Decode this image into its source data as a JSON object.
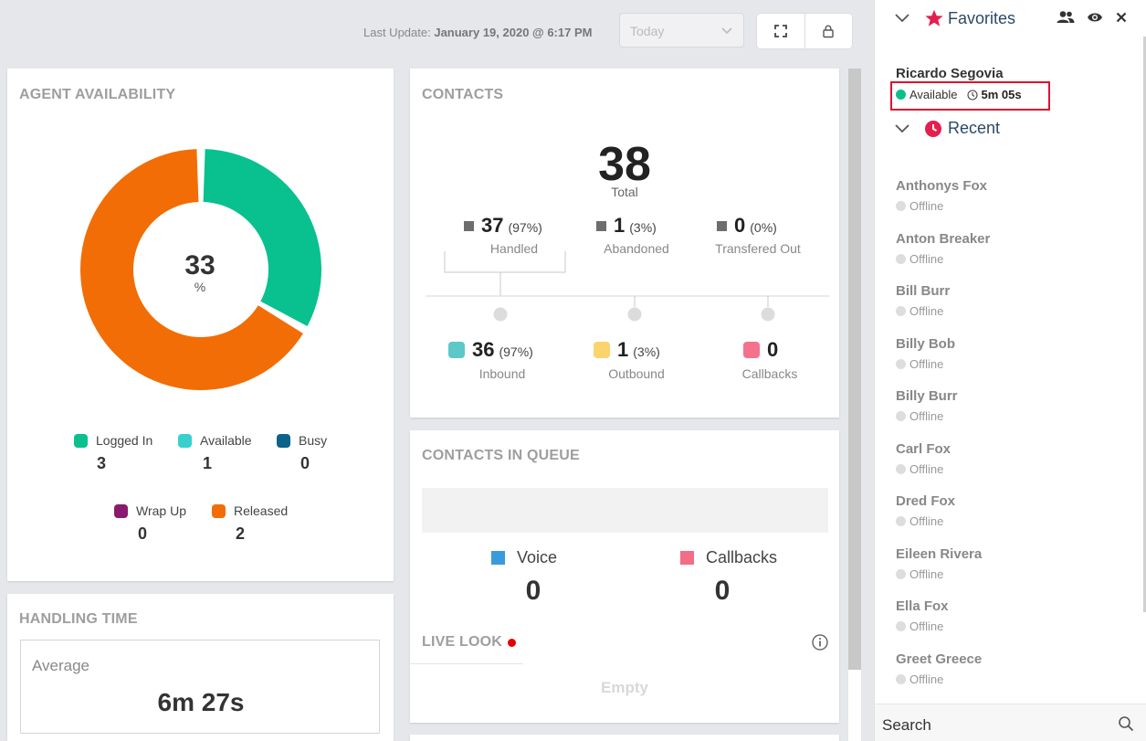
{
  "header": {
    "last_update_label": "Last Update:",
    "last_update_value": "January 19, 2020 @ 6:17 PM",
    "period_select": "Today",
    "icons": {
      "fullscreen": "fullscreen-icon",
      "lock": "lock-icon",
      "chevron": "chevron-down-icon"
    }
  },
  "agent_availability": {
    "title": "AGENT AVAILABILITY",
    "center_value": "33",
    "center_unit": "%",
    "legend": [
      {
        "label": "Logged In",
        "value": "3",
        "color": "#08c18e"
      },
      {
        "label": "Available",
        "value": "1",
        "color": "#37d0cc"
      },
      {
        "label": "Busy",
        "value": "0",
        "color": "#0d6289"
      },
      {
        "label": "Wrap Up",
        "value": "0",
        "color": "#8a1a6d"
      },
      {
        "label": "Released",
        "value": "2",
        "color": "#f26d05"
      }
    ]
  },
  "chart_data": {
    "type": "pie",
    "categories": [
      "Available",
      "Released"
    ],
    "values": [
      1,
      2
    ],
    "colors": [
      "#08c18e",
      "#f26d05"
    ],
    "center_label": "33 %"
  },
  "handling_time": {
    "title": "HANDLING TIME",
    "label": "Average",
    "value": "6m 27s"
  },
  "contacts": {
    "title": "CONTACTS",
    "total": "38",
    "total_label": "Total",
    "handled": {
      "num": "37",
      "pct": "(97%)",
      "label": "Handled"
    },
    "abandoned": {
      "num": "1",
      "pct": "(3%)",
      "label": "Abandoned"
    },
    "transferred": {
      "num": "0",
      "pct": "(0%)",
      "label": "Transfered Out"
    },
    "inbound": {
      "num": "36",
      "pct": "(97%)",
      "label": "Inbound",
      "color": "#5cc8c8"
    },
    "outbound": {
      "num": "1",
      "pct": "(3%)",
      "label": "Outbound",
      "color": "#fcd36d"
    },
    "callbacks": {
      "num": "0",
      "pct": "",
      "label": "Callbacks",
      "color": "#f6718d"
    }
  },
  "queue": {
    "title": "CONTACTS IN QUEUE",
    "voice_label": "Voice",
    "voice_value": "0",
    "voice_color": "#3a9bdc",
    "callbacks_label": "Callbacks",
    "callbacks_value": "0",
    "callbacks_color": "#f26d86",
    "live_look_title": "LIVE LOOK",
    "live_look_empty": "Empty"
  },
  "panel": {
    "favorites_title": "Favorites",
    "recent_title": "Recent",
    "favorite_agent": {
      "name": "Ricardo Segovia",
      "status": "Available",
      "time": "5m 05s"
    },
    "recent_agents": [
      {
        "name": "Anthonys Fox",
        "status": "Offline"
      },
      {
        "name": "Anton Breaker",
        "status": "Offline"
      },
      {
        "name": "Bill Burr",
        "status": "Offline"
      },
      {
        "name": "Billy Bob",
        "status": "Offline"
      },
      {
        "name": "Billy Burr",
        "status": "Offline"
      },
      {
        "name": "Carl Fox",
        "status": "Offline"
      },
      {
        "name": "Dred Fox",
        "status": "Offline"
      },
      {
        "name": "Eileen Rivera",
        "status": "Offline"
      },
      {
        "name": "Ella Fox",
        "status": "Offline"
      },
      {
        "name": "Greet Greece",
        "status": "Offline"
      }
    ],
    "search_placeholder": "Search"
  }
}
